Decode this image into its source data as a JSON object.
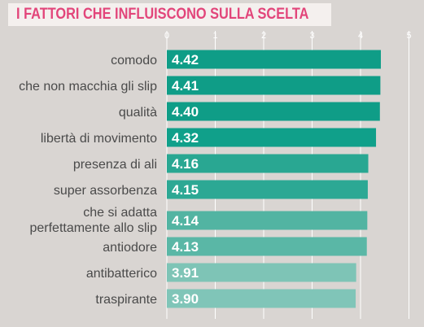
{
  "chart_data": {
    "type": "bar",
    "orientation": "horizontal",
    "title": "I FATTORI CHE INFLUISCONO SULLA SCELTA",
    "categories": [
      "comodo",
      "che non macchia gli slip",
      "qualità",
      "libertà di movimento",
      "presenza di ali",
      "super assorbenza",
      [
        "che si adatta",
        "perfettamente allo slip"
      ],
      "antiodore",
      "antibatterico",
      "traspirante"
    ],
    "values": [
      4.42,
      4.41,
      4.4,
      4.32,
      4.16,
      4.15,
      4.14,
      4.13,
      3.91,
      3.9
    ],
    "value_labels": [
      "4.42",
      "4.41",
      "4.40",
      "4.32",
      "4.16",
      "4.15",
      "4.14",
      "4.13",
      "3.91",
      "3.90"
    ],
    "xlim": [
      0,
      5
    ],
    "ticks": [
      "0",
      "1",
      "2",
      "3",
      "4",
      "5"
    ],
    "bar_colors": [
      "#0f9d87",
      "#0f9d87",
      "#0f9d87",
      "#10a08a",
      "#29a792",
      "#2ca894",
      "#52b4a2",
      "#5ab7a6",
      "#7ec4b6",
      "#80c5b8"
    ],
    "grid": true,
    "legend": "none"
  }
}
